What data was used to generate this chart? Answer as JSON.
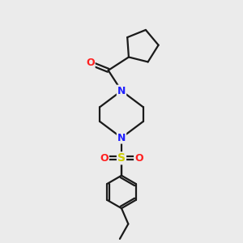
{
  "background_color": "#ebebeb",
  "bond_color": "#1a1a1a",
  "N_color": "#2020ff",
  "O_color": "#ff2020",
  "S_color": "#cccc00",
  "line_width": 1.6,
  "figsize": [
    3.0,
    3.0
  ],
  "dpi": 100,
  "xlim": [
    0,
    10
  ],
  "ylim": [
    0,
    10
  ]
}
